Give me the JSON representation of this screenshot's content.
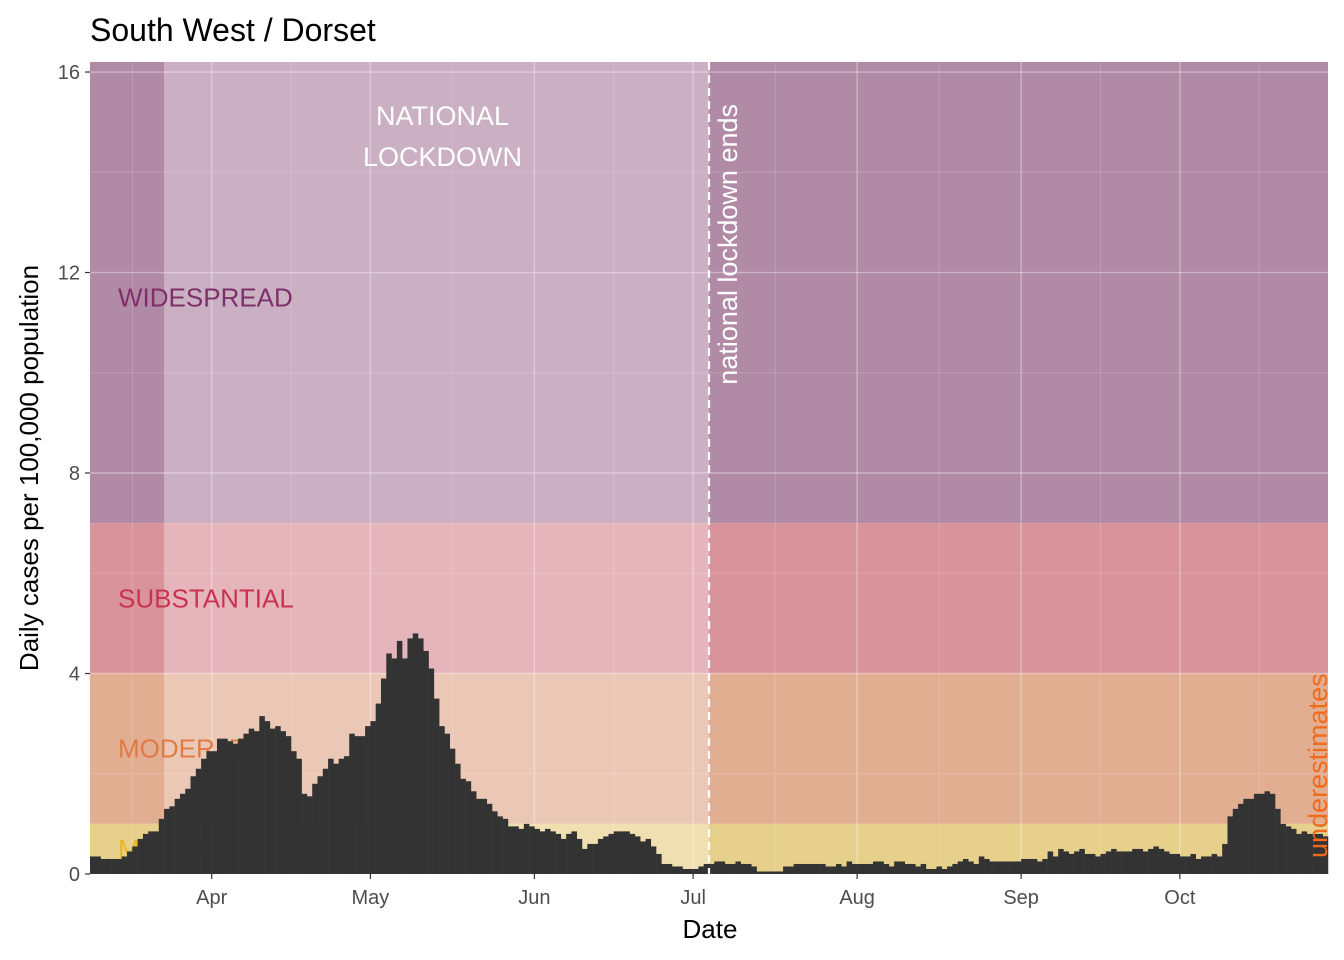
{
  "chart_data": {
    "type": "bar",
    "title": "South West / Dorset",
    "xlabel": "Date",
    "ylabel": "Daily cases per 100,000 population",
    "ylim": [
      0,
      16.2
    ],
    "yticks": [
      0,
      4,
      8,
      12,
      16
    ],
    "ytick_labels": [
      "0",
      "4",
      "8",
      "12",
      "16"
    ],
    "xlim": [
      "2020-03-09",
      "2020-10-29"
    ],
    "xticks": [
      "2020-04-01",
      "2020-05-01",
      "2020-06-01",
      "2020-07-01",
      "2020-08-01",
      "2020-09-01",
      "2020-10-01"
    ],
    "xtick_labels": [
      "Apr",
      "May",
      "Jun",
      "Jul",
      "Aug",
      "Sep",
      "Oct"
    ],
    "grid": true,
    "bar_color": "#333333",
    "bands": [
      {
        "label": "WIDESPREAD",
        "ymin": 7,
        "ymax": 16.2,
        "color": "#b18ba6",
        "label_color": "#7e2f6a",
        "label_y": 11.5
      },
      {
        "label": "SUBSTANTIAL",
        "ymin": 4,
        "ymax": 7,
        "color": "#d9939b",
        "label_color": "#c8344f",
        "label_y": 5.5
      },
      {
        "label": "MODERATE",
        "ymin": 1,
        "ymax": 4,
        "color": "#e2ae92",
        "label_color": "#e27a45",
        "label_y": 2.5
      },
      {
        "label": "MINIMAL",
        "ymin": 0,
        "ymax": 1,
        "color": "#e7d08c",
        "label_color": "#e8b828",
        "label_y": 0.5
      }
    ],
    "lockdown": {
      "start": "2020-03-23",
      "end": "2020-07-04",
      "label": "NATIONAL\nLOCKDOWN",
      "color": "#ffffff"
    },
    "annotations": {
      "lockdown_end": "national lockdown ends",
      "underestimates": "underestimates",
      "underestimates_from": "2020-10-24"
    },
    "series": [
      {
        "start_date": "2020-03-09",
        "values": [
          0.35,
          0.35,
          0.3,
          0.3,
          0.3,
          0.3,
          0.35,
          0.45,
          0.55,
          0.7,
          0.8,
          0.85,
          0.85,
          1.1,
          1.3,
          1.35,
          1.5,
          1.6,
          1.7,
          1.95,
          2.1,
          2.3,
          2.45,
          2.45,
          2.7,
          2.7,
          2.65,
          2.6,
          2.7,
          2.8,
          2.9,
          2.85,
          3.15,
          3.05,
          2.9,
          2.95,
          2.85,
          2.75,
          2.45,
          2.3,
          1.6,
          1.55,
          1.8,
          1.95,
          2.1,
          2.3,
          2.2,
          2.3,
          2.35,
          2.8,
          2.75,
          2.75,
          2.95,
          3.05,
          3.4,
          3.9,
          4.4,
          4.3,
          4.65,
          4.3,
          4.7,
          4.8,
          4.7,
          4.45,
          4.1,
          3.5,
          2.95,
          2.8,
          2.5,
          2.2,
          1.9,
          1.85,
          1.65,
          1.5,
          1.5,
          1.4,
          1.25,
          1.15,
          1.1,
          0.95,
          0.95,
          0.9,
          1.0,
          0.95,
          0.9,
          0.85,
          0.9,
          0.85,
          0.8,
          0.7,
          0.8,
          0.85,
          0.7,
          0.5,
          0.6,
          0.6,
          0.7,
          0.75,
          0.8,
          0.85,
          0.85,
          0.85,
          0.8,
          0.75,
          0.65,
          0.7,
          0.55,
          0.4,
          0.2,
          0.2,
          0.15,
          0.15,
          0.1,
          0.1,
          0.1,
          0.15,
          0.2,
          0.2,
          0.25,
          0.25,
          0.2,
          0.2,
          0.25,
          0.2,
          0.2,
          0.15,
          0.05,
          0.05,
          0.05,
          0.05,
          0.05,
          0.15,
          0.15,
          0.2,
          0.2,
          0.2,
          0.2,
          0.2,
          0.2,
          0.15,
          0.15,
          0.2,
          0.15,
          0.25,
          0.2,
          0.2,
          0.2,
          0.2,
          0.25,
          0.25,
          0.2,
          0.15,
          0.25,
          0.25,
          0.2,
          0.2,
          0.15,
          0.2,
          0.1,
          0.1,
          0.15,
          0.1,
          0.15,
          0.2,
          0.25,
          0.3,
          0.25,
          0.2,
          0.35,
          0.3,
          0.25,
          0.25,
          0.25,
          0.25,
          0.25,
          0.25,
          0.3,
          0.3,
          0.3,
          0.25,
          0.3,
          0.45,
          0.35,
          0.5,
          0.45,
          0.4,
          0.45,
          0.5,
          0.4,
          0.4,
          0.35,
          0.4,
          0.45,
          0.5,
          0.45,
          0.45,
          0.45,
          0.5,
          0.5,
          0.45,
          0.5,
          0.55,
          0.5,
          0.45,
          0.4,
          0.4,
          0.35,
          0.35,
          0.4,
          0.3,
          0.35,
          0.35,
          0.4,
          0.35,
          0.6,
          1.15,
          1.3,
          1.4,
          1.5,
          1.5,
          1.6,
          1.6,
          1.65,
          1.6,
          1.3,
          1.0,
          0.95,
          0.9,
          0.8,
          0.85,
          0.8,
          0.8,
          0.8,
          0.75,
          0.75,
          0.8,
          0.85,
          0.85,
          0.9,
          1.0,
          1.1,
          1.3,
          1.45,
          1.6,
          1.9,
          2.1,
          2.4,
          2.6,
          2.9,
          3.1,
          3.7,
          4.1,
          5.2,
          5.9,
          6.6,
          7.1,
          7.7,
          8.3,
          9.0,
          9.3,
          9.6,
          10.1,
          9.4,
          9.3,
          9.9,
          10.4,
          11.3,
          11.8,
          13.3,
          14.4,
          15.4,
          16.2,
          16.0,
          15.9,
          14.9,
          12.8,
          12.6,
          10.9,
          10.2,
          10.2,
          10.5,
          10.6,
          8.8
        ]
      }
    ]
  }
}
